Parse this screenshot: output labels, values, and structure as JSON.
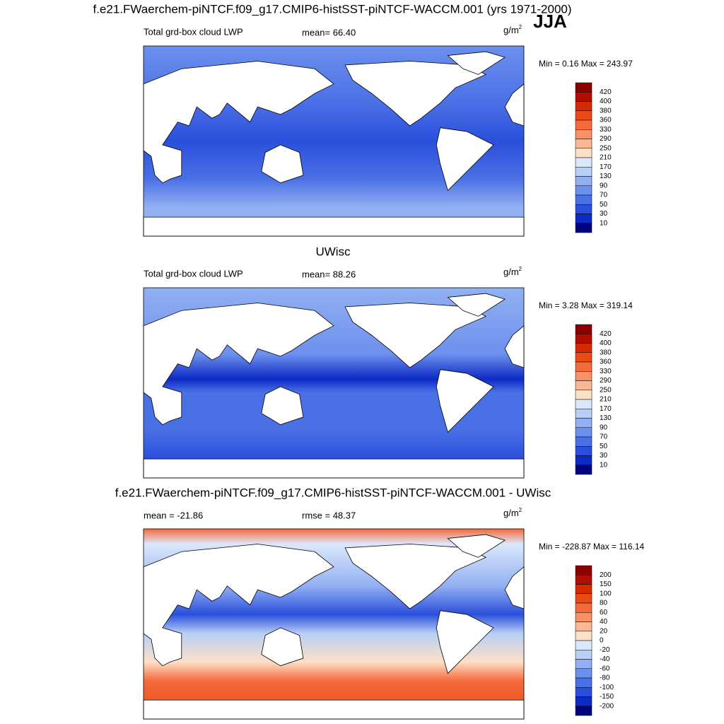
{
  "header": {
    "title": "f.e21.FWaerchem-piNTCF.f09_g17.CMIP6-histSST-piNTCF-WACCM.001 (yrs 1971-2000)",
    "season": "JJA"
  },
  "panels": [
    {
      "variable": "Total grd-box cloud LWP",
      "stat": "mean=  66.40",
      "units": {
        "base": "g/m",
        "sup": "2"
      },
      "minmax": "Min =   0.16 Max = 243.97",
      "colorbar": {
        "labels": [
          420,
          400,
          380,
          360,
          330,
          290,
          250,
          210,
          170,
          130,
          90,
          70,
          50,
          30,
          10
        ],
        "colors": [
          "#8b0000",
          "#b00e00",
          "#d42a00",
          "#ec4a14",
          "#f46a3a",
          "#f89168",
          "#fbb694",
          "#fde0c6",
          "#dbe8fb",
          "#b8cff6",
          "#92b0f2",
          "#6c90ee",
          "#4a70e6",
          "#2a4fdc",
          "#0c2ac4",
          "#00047f"
        ]
      }
    },
    {
      "heading": "UWisc",
      "variable": "Total grd-box cloud LWP",
      "stat": "mean=  88.26",
      "units": {
        "base": "g/m",
        "sup": "2"
      },
      "minmax": "Min =   3.28 Max = 319.14",
      "colorbar": {
        "labels": [
          420,
          400,
          380,
          360,
          330,
          290,
          250,
          210,
          170,
          130,
          90,
          70,
          50,
          30,
          10
        ],
        "colors": [
          "#8b0000",
          "#b00e00",
          "#d42a00",
          "#ec4a14",
          "#f46a3a",
          "#f89168",
          "#fbb694",
          "#fde0c6",
          "#dbe8fb",
          "#b8cff6",
          "#92b0f2",
          "#6c90ee",
          "#4a70e6",
          "#2a4fdc",
          "#0c2ac4",
          "#00047f"
        ]
      }
    },
    {
      "heading": "f.e21.FWaerchem-piNTCF.f09_g17.CMIP6-histSST-piNTCF-WACCM.001 - UWisc",
      "stat": "mean = -21.86",
      "stat2": "rmse =  48.37",
      "units": {
        "base": "g/m",
        "sup": "2"
      },
      "minmax": "Min = -228.87 Max = 116.14",
      "colorbar": {
        "labels": [
          200,
          150,
          100,
          80,
          60,
          40,
          20,
          0,
          -20,
          -40,
          -60,
          -80,
          -100,
          -150,
          -200
        ],
        "colors": [
          "#8b0000",
          "#b00e00",
          "#d42a00",
          "#ec4a14",
          "#f46a3a",
          "#f89168",
          "#fbb694",
          "#fde0c6",
          "#dbe8fb",
          "#b8cff6",
          "#92b0f2",
          "#6c90ee",
          "#4a70e6",
          "#2a4fdc",
          "#0c2ac4",
          "#00047f"
        ]
      }
    }
  ]
}
